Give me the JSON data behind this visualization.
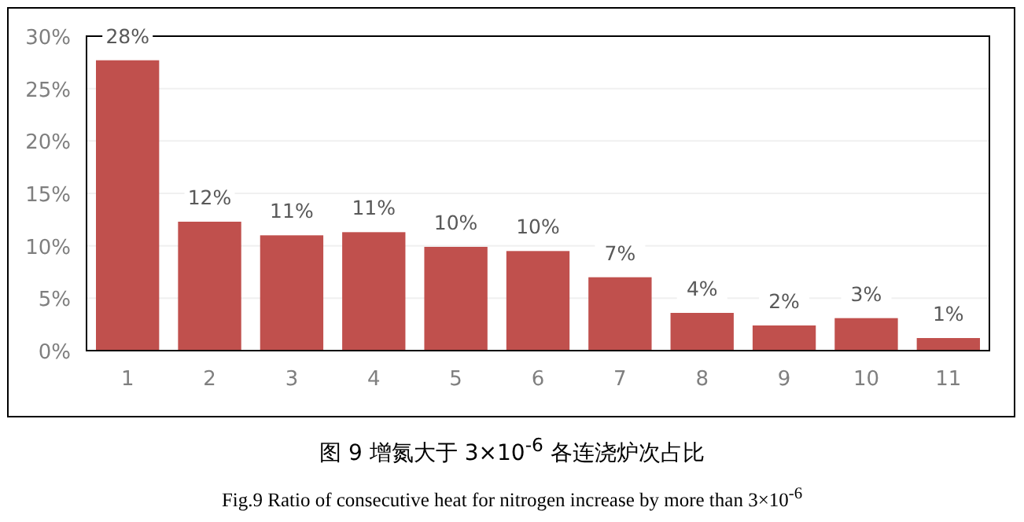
{
  "chart_data": {
    "type": "bar",
    "title": "图 9  增氮大于 3×10$^{-6}$ 各连浇炉次占比",
    "subtitle": "Fig.9 Ratio of consecutive heat for nitrogen increase by more than 3×10$^{-6}$",
    "categories": [
      "1",
      "2",
      "3",
      "4",
      "5",
      "6",
      "7",
      "8",
      "9",
      "10",
      "11"
    ],
    "values": [
      27.7,
      12.3,
      11.0,
      11.3,
      9.9,
      9.5,
      7.0,
      3.6,
      2.4,
      3.1,
      1.2
    ],
    "value_labels": [
      "28%",
      "12%",
      "11%",
      "11%",
      "10%",
      "10%",
      "7%",
      "4%",
      "2%",
      "3%",
      "1%"
    ],
    "color": "#c0504d",
    "ylim": [
      0,
      30
    ],
    "yticks": [
      {
        "value": 0,
        "label": "0%"
      },
      {
        "value": 5,
        "label": "5%"
      },
      {
        "value": 10,
        "label": "10%"
      },
      {
        "value": 15,
        "label": "15%"
      },
      {
        "value": 20,
        "label": "20%"
      },
      {
        "value": 25,
        "label": "25%"
      },
      {
        "value": 30,
        "label": "30%"
      }
    ],
    "grid": "y"
  }
}
